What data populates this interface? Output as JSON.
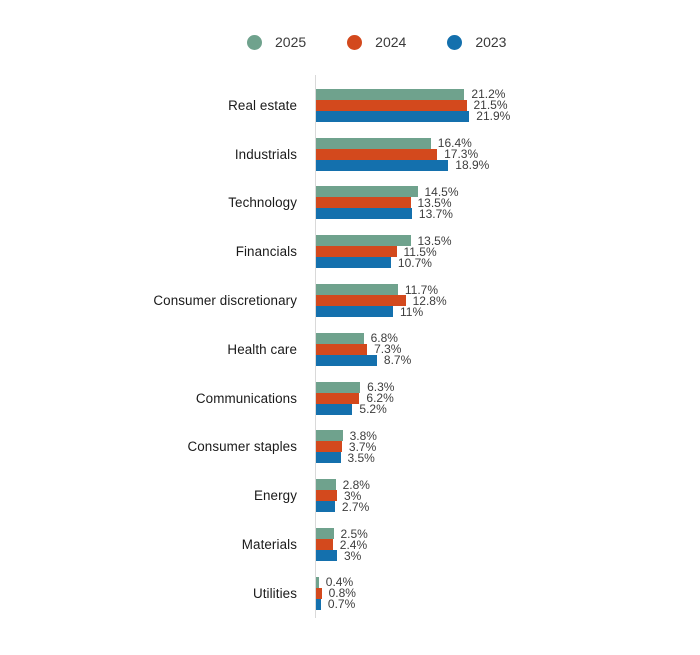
{
  "legend": {
    "items": [
      {
        "label": "2025",
        "color": "#6FA28D"
      },
      {
        "label": "2024",
        "color": "#D3491D"
      },
      {
        "label": "2023",
        "color": "#1470AD"
      }
    ]
  },
  "chart_data": {
    "type": "bar",
    "orientation": "horizontal",
    "title": "",
    "xlabel": "",
    "ylabel": "",
    "xlim": [
      0,
      25
    ],
    "grid": false,
    "legend_position": "top",
    "categories": [
      "Real estate",
      "Industrials",
      "Technology",
      "Financials",
      "Consumer discretionary",
      "Health care",
      "Communications",
      "Consumer staples",
      "Energy",
      "Materials",
      "Utilities"
    ],
    "series": [
      {
        "name": "2025",
        "color": "#6FA28D",
        "values": [
          21.2,
          16.4,
          14.5,
          13.5,
          11.7,
          6.8,
          6.3,
          3.8,
          2.8,
          2.5,
          0.4
        ],
        "labels": [
          "21.2%",
          "16.4%",
          "14.5%",
          "13.5%",
          "11.7%",
          "6.8%",
          "6.3%",
          "3.8%",
          "2.8%",
          "2.5%",
          "0.4%"
        ]
      },
      {
        "name": "2024",
        "color": "#D3491D",
        "values": [
          21.5,
          17.3,
          13.5,
          11.5,
          12.8,
          7.3,
          6.2,
          3.7,
          3,
          2.4,
          0.8
        ],
        "labels": [
          "21.5%",
          "17.3%",
          "13.5%",
          "11.5%",
          "12.8%",
          "7.3%",
          "6.2%",
          "3.7%",
          "3%",
          "2.4%",
          "0.8%"
        ]
      },
      {
        "name": "2023",
        "color": "#1470AD",
        "values": [
          21.9,
          18.9,
          13.7,
          10.7,
          11,
          8.7,
          5.2,
          3.5,
          2.7,
          3,
          0.7
        ],
        "labels": [
          "21.9%",
          "18.9%",
          "13.7%",
          "10.7%",
          "11%",
          "8.7%",
          "5.2%",
          "3.5%",
          "2.7%",
          "3%",
          "0.7%"
        ]
      }
    ]
  }
}
